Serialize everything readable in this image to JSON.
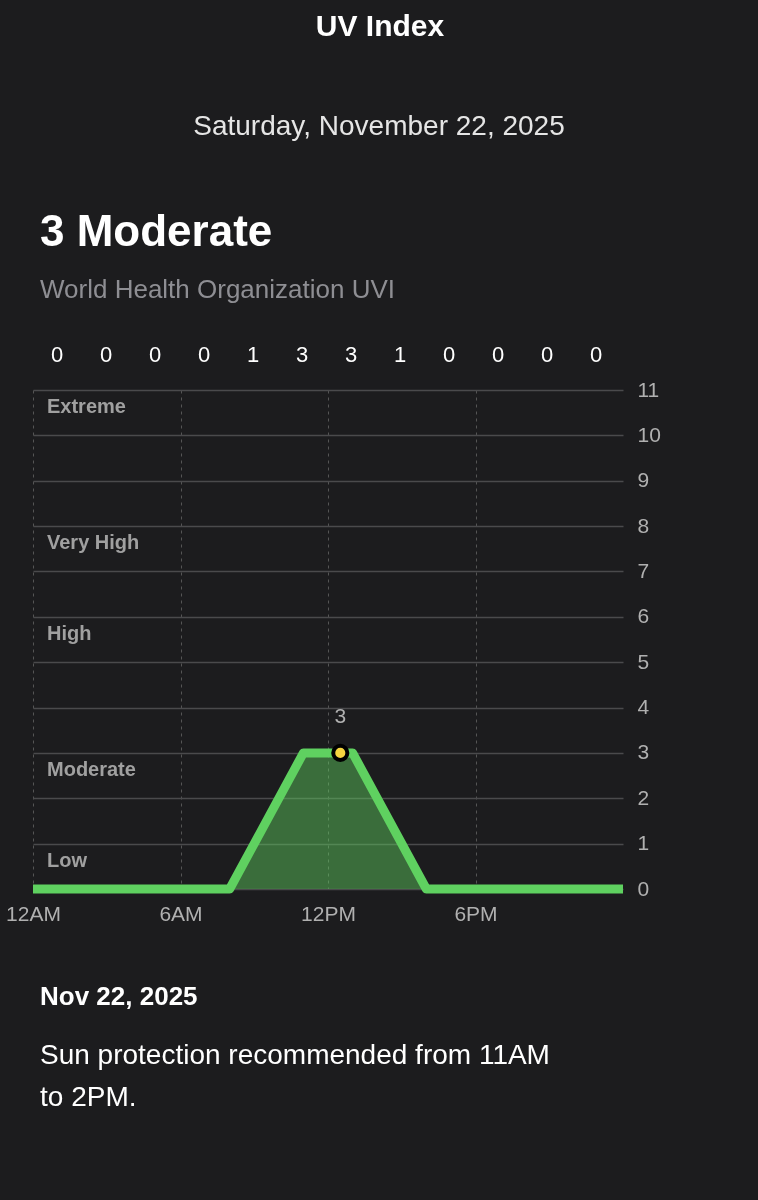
{
  "chart_data": {
    "type": "area",
    "title": "UV Index",
    "subtitle": "Saturday, November 22, 2025",
    "annotations": [
      "3 Moderate",
      "World Health Organization UVI",
      "Nov 22, 2025",
      "Sun protection recommended from 11AM\nto 2PM.",
      "0",
      "0",
      "0",
      "0",
      "1",
      "3",
      "3",
      "1",
      "0",
      "0",
      "0",
      "0",
      "Extreme",
      "Very High",
      "High",
      "Moderate",
      "Low"
    ],
    "series": [
      {
        "color": "#5fd160",
        "x": [
          "2025-11-22T00:00",
          "2025-11-22T08:00",
          "2025-11-22T11:00",
          "2025-11-22T13:00",
          "2025-11-22T16:00",
          "2025-11-23T00:00"
        ],
        "values": [
          0,
          0,
          3,
          3,
          0,
          0
        ]
      },
      {
        "type": "scatter",
        "color": "#f5d440",
        "marker": "circle",
        "x": [
          "2025-11-22T12:30"
        ],
        "values": [
          3
        ],
        "value_labels": [
          "3"
        ]
      }
    ],
    "xlim": [
      "2025-11-22T00:00",
      "2025-11-23T00:00"
    ],
    "xticks": [
      {
        "value": "2025-11-22T00:00",
        "label": "12AM"
      },
      {
        "value": "2025-11-22T06:00",
        "label": "6AM"
      },
      {
        "value": "2025-11-22T12:00",
        "label": "12PM"
      },
      {
        "value": "2025-11-22T18:00",
        "label": "6PM"
      }
    ],
    "ylim": [
      0,
      11
    ],
    "yticks": [
      0,
      1,
      2,
      3,
      4,
      5,
      6,
      7,
      8,
      9,
      10,
      11
    ],
    "grid": true
  }
}
